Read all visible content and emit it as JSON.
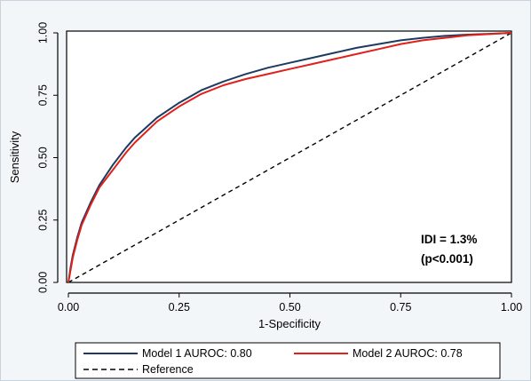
{
  "chart_data": {
    "type": "line",
    "xlabel": "1-Specificity",
    "ylabel": "Sensitivity",
    "xlim": [
      0,
      1
    ],
    "ylim": [
      0,
      1
    ],
    "xticks": [
      "0.00",
      "0.25",
      "0.50",
      "0.75",
      "1.00"
    ],
    "yticks": [
      "0.00",
      "0.25",
      "0.50",
      "0.75",
      "1.00"
    ],
    "grid": false,
    "legend_position": "bottom",
    "annotation": [
      "IDI = 1.3%",
      "(p<0.001)"
    ],
    "series": [
      {
        "name": "Model 1 AUROC: 0.80",
        "color": "#1f3a5f",
        "style": "solid",
        "x": [
          0,
          0.005,
          0.01,
          0.02,
          0.03,
          0.05,
          0.07,
          0.1,
          0.13,
          0.15,
          0.2,
          0.25,
          0.3,
          0.35,
          0.4,
          0.45,
          0.5,
          0.55,
          0.6,
          0.65,
          0.7,
          0.75,
          0.8,
          0.85,
          0.9,
          0.95,
          1.0
        ],
        "y": [
          0,
          0.06,
          0.11,
          0.18,
          0.24,
          0.32,
          0.39,
          0.47,
          0.54,
          0.58,
          0.66,
          0.72,
          0.77,
          0.805,
          0.835,
          0.86,
          0.88,
          0.9,
          0.92,
          0.94,
          0.955,
          0.97,
          0.98,
          0.988,
          0.993,
          0.996,
          1.0
        ]
      },
      {
        "name": "Model 2 AUROC: 0.78",
        "color": "#e0201b",
        "style": "solid",
        "x": [
          0,
          0.005,
          0.01,
          0.02,
          0.03,
          0.05,
          0.07,
          0.1,
          0.13,
          0.15,
          0.2,
          0.25,
          0.3,
          0.35,
          0.4,
          0.45,
          0.5,
          0.55,
          0.6,
          0.65,
          0.7,
          0.75,
          0.8,
          0.85,
          0.9,
          0.95,
          1.0
        ],
        "y": [
          0,
          0.05,
          0.1,
          0.17,
          0.23,
          0.31,
          0.38,
          0.45,
          0.52,
          0.56,
          0.645,
          0.705,
          0.755,
          0.79,
          0.815,
          0.835,
          0.855,
          0.875,
          0.895,
          0.915,
          0.935,
          0.955,
          0.97,
          0.98,
          0.99,
          0.995,
          1.0
        ]
      },
      {
        "name": "Reference",
        "color": "#000000",
        "style": "dashed",
        "x": [
          0,
          1
        ],
        "y": [
          0,
          1
        ]
      }
    ]
  }
}
